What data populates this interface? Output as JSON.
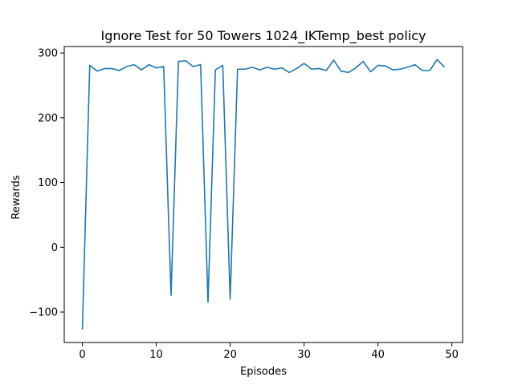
{
  "chart_data": {
    "type": "line",
    "title": "Ignore Test for 50 Towers 1024_IKTemp_best policy",
    "xlabel": "Episodes",
    "ylabel": "Rewards",
    "xlim": [
      -2.45,
      51.45
    ],
    "ylim": [
      -147,
      310
    ],
    "xticks": [
      0,
      10,
      20,
      30,
      40,
      50
    ],
    "yticks": [
      -100,
      0,
      100,
      200,
      300
    ],
    "grid": false,
    "series_color": "#1f77b4",
    "x": [
      0,
      1,
      2,
      3,
      4,
      5,
      6,
      7,
      8,
      9,
      10,
      11,
      12,
      13,
      14,
      15,
      16,
      17,
      18,
      19,
      20,
      21,
      22,
      23,
      24,
      25,
      26,
      27,
      28,
      29,
      30,
      31,
      32,
      33,
      34,
      35,
      36,
      37,
      38,
      39,
      40,
      41,
      42,
      43,
      44,
      45,
      46,
      47,
      48,
      49
    ],
    "values": [
      -127,
      281,
      272,
      276,
      276,
      273,
      279,
      282,
      274,
      282,
      277,
      279,
      -74,
      287,
      288,
      279,
      282,
      -85,
      274,
      281,
      -80,
      275,
      275,
      278,
      274,
      278,
      275,
      277,
      270,
      276,
      284,
      275,
      276,
      273,
      289,
      272,
      270,
      277,
      287,
      271,
      281,
      280,
      274,
      275,
      278,
      282,
      273,
      273,
      290,
      278
    ]
  }
}
